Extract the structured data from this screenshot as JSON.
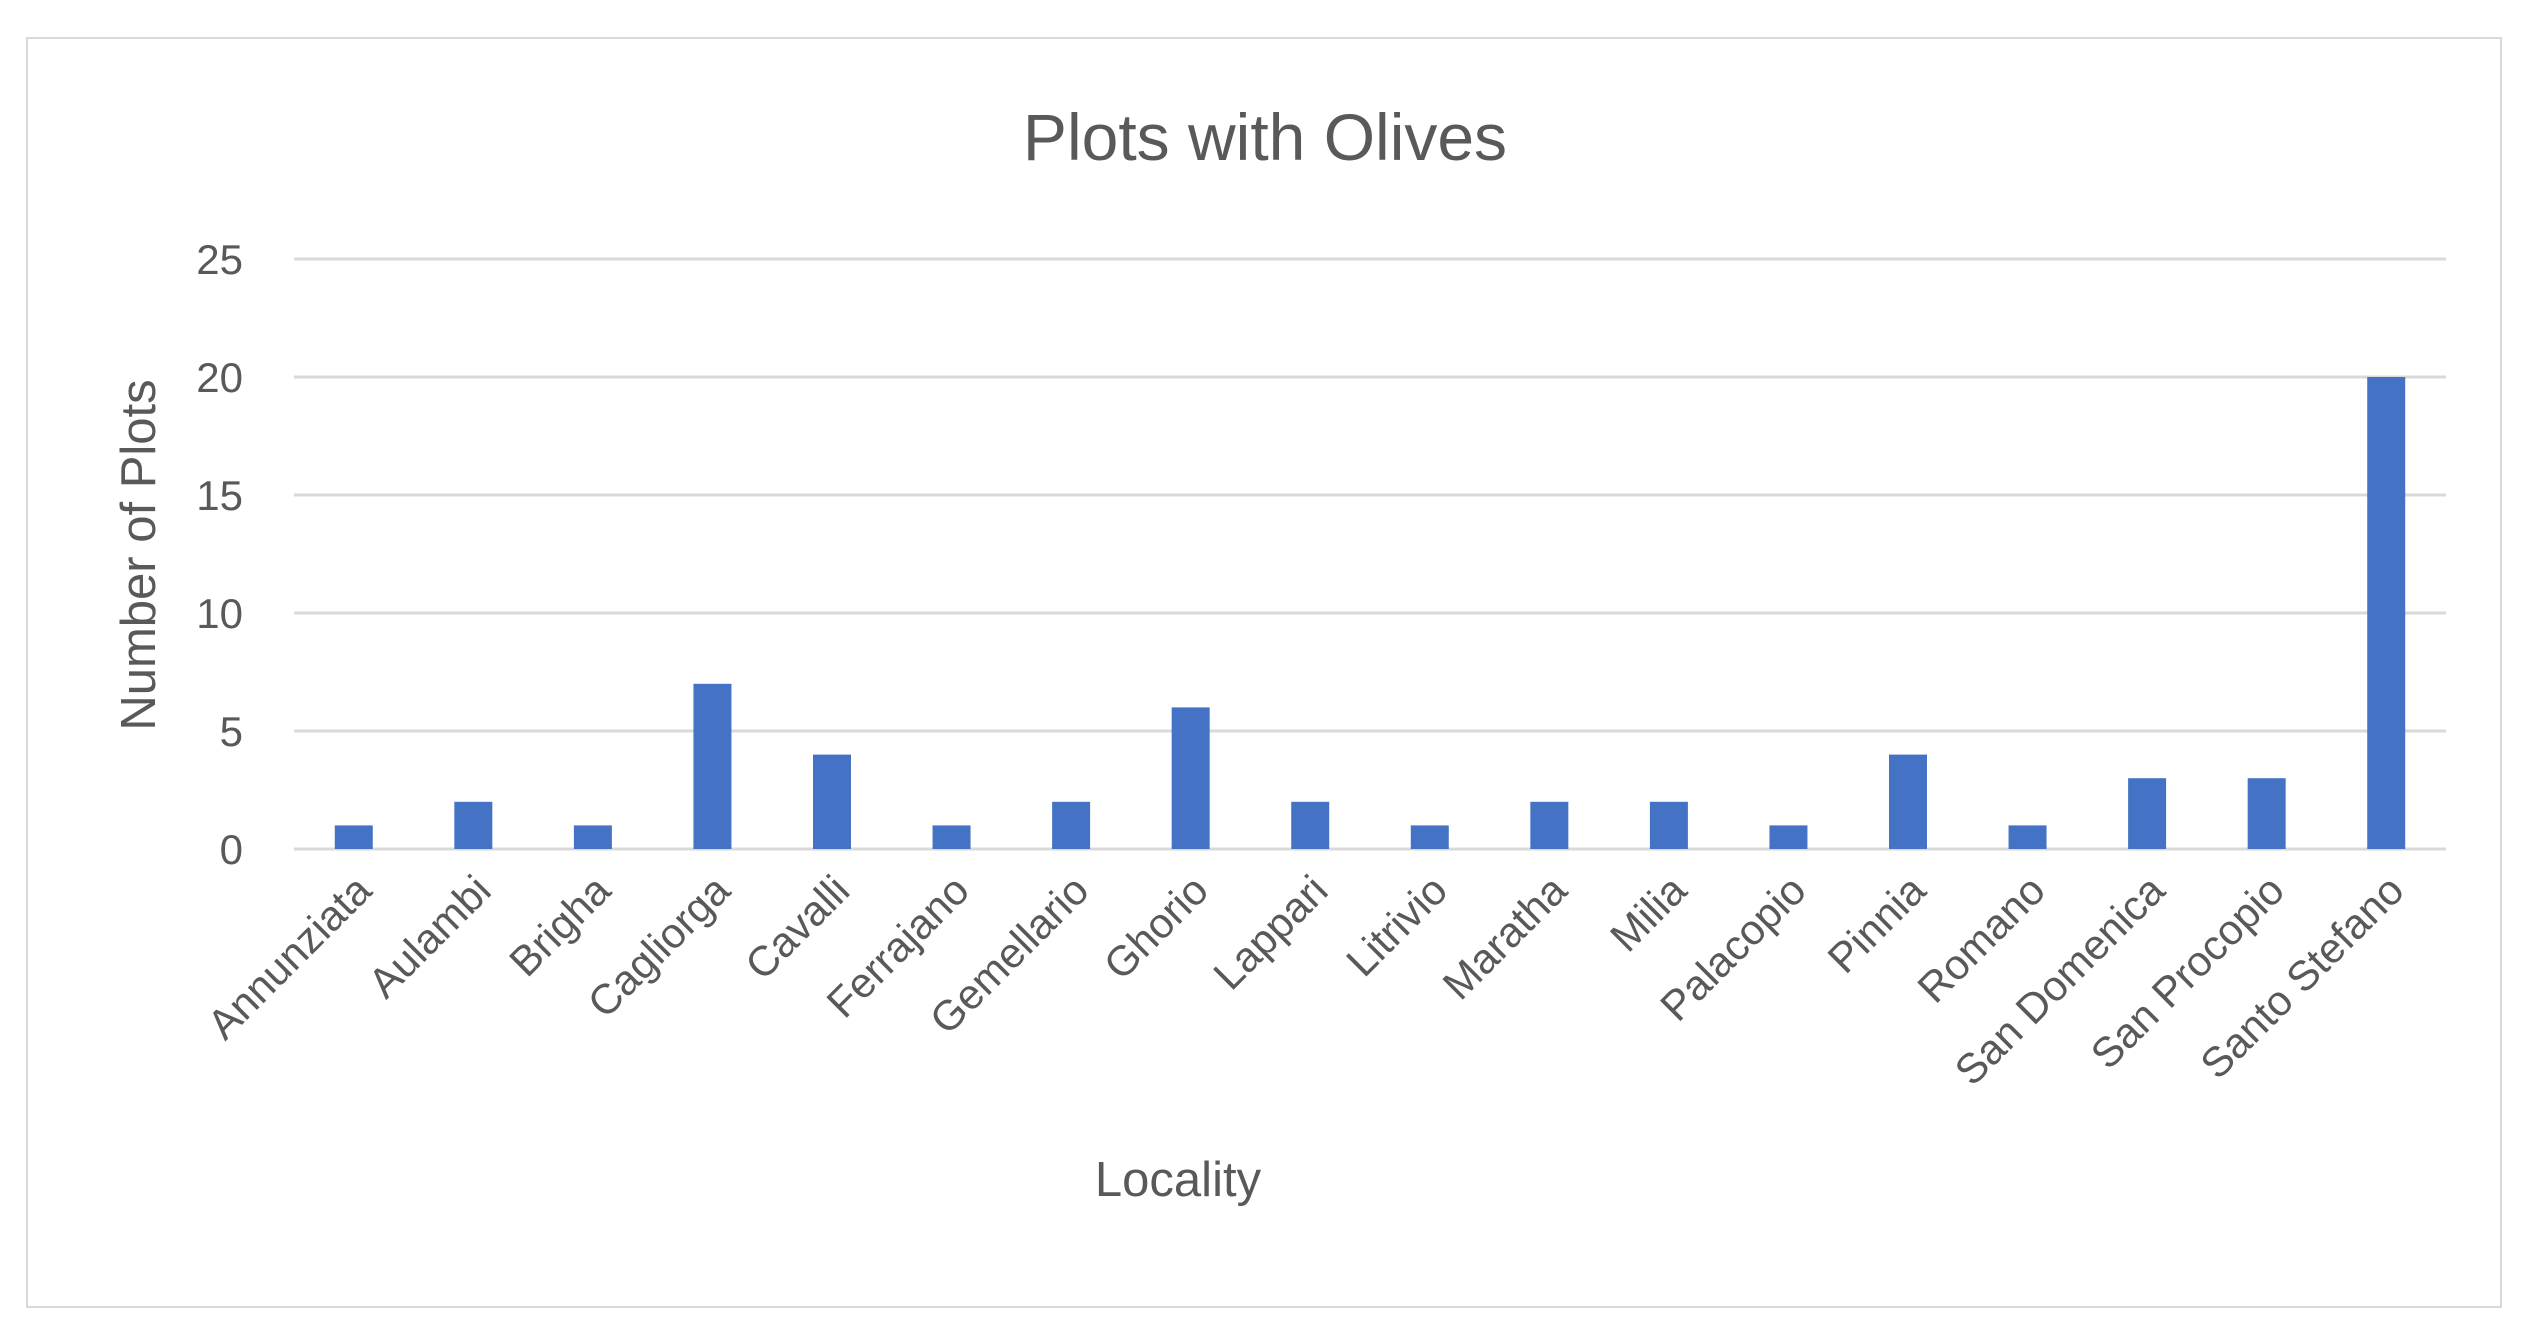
{
  "chart_data": {
    "type": "bar",
    "title": "Plots with Olives",
    "xlabel": "Locality",
    "ylabel": "Number of Plots",
    "categories": [
      "Annunziata",
      "Aulambi",
      "Brigha",
      "Cagliorga",
      "Cavalli",
      "Ferrajano",
      "Gemellario",
      "Ghorio",
      "Lappari",
      "Litrivio",
      "Maratha",
      "Milia",
      "Palacopio",
      "Pinnia",
      "Romano",
      "San Domenica",
      "San Procopio",
      "Santo Stefano"
    ],
    "values": [
      1,
      2,
      1,
      7,
      4,
      1,
      2,
      6,
      2,
      1,
      2,
      2,
      1,
      4,
      1,
      3,
      3,
      20
    ],
    "ylim": [
      0,
      25
    ],
    "yticks": [
      0,
      5,
      10,
      15,
      20,
      25
    ],
    "grid": true,
    "legend": "none",
    "bar_color": "#4472c4",
    "grid_color": "#d9d9d9"
  }
}
